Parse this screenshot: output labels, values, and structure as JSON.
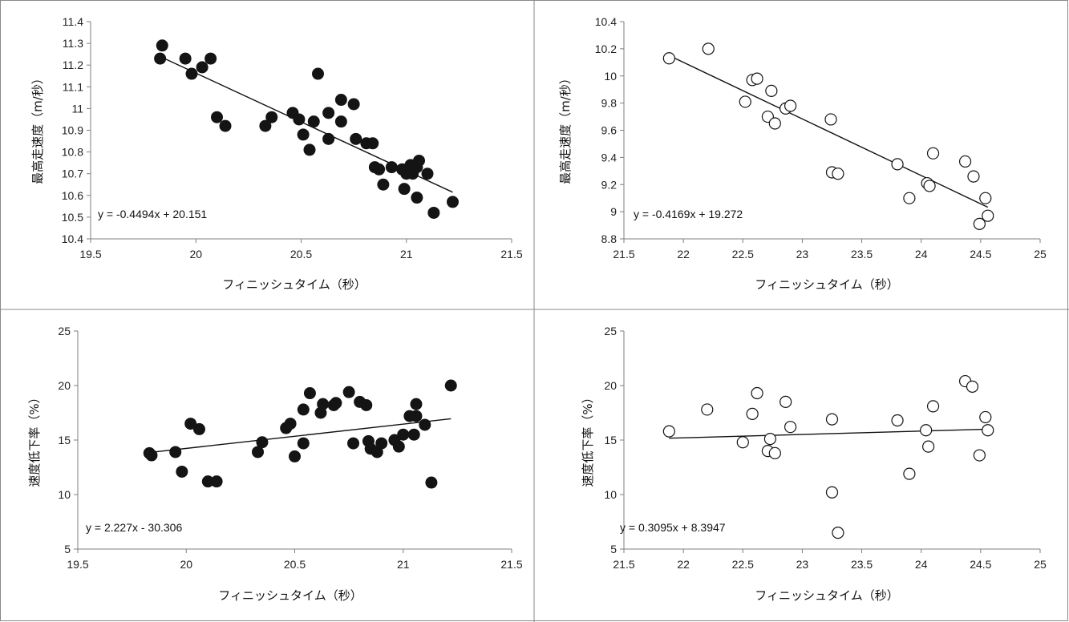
{
  "chart_data": [
    {
      "type": "scatter",
      "xlabel": "フィニッシュタイム（秒）",
      "ylabel": "最高走速度（m/秒）",
      "xlim": [
        19.5,
        21.5
      ],
      "ylim": [
        10.4,
        11.4
      ],
      "xticks": [
        "19.5",
        "20",
        "20.5",
        "21",
        "21.5"
      ],
      "yticks": [
        "10.4",
        "10.5",
        "10.6",
        "10.7",
        "10.8",
        "10.9",
        "11",
        "11.1",
        "11.2",
        "11.3",
        "11.4"
      ],
      "marker": "filled",
      "grid": false,
      "trendline": {
        "slope": -0.4494,
        "intercept": 20.151,
        "equation": "y = -0.4494x + 20.151"
      },
      "points": [
        [
          19.84,
          11.29
        ],
        [
          19.83,
          11.23
        ],
        [
          19.95,
          11.23
        ],
        [
          19.98,
          11.16
        ],
        [
          20.03,
          11.19
        ],
        [
          20.07,
          11.23
        ],
        [
          20.1,
          10.96
        ],
        [
          20.14,
          10.92
        ],
        [
          20.33,
          10.92
        ],
        [
          20.36,
          10.96
        ],
        [
          20.46,
          10.98
        ],
        [
          20.49,
          10.95
        ],
        [
          20.51,
          10.88
        ],
        [
          20.54,
          10.81
        ],
        [
          20.56,
          10.94
        ],
        [
          20.58,
          11.16
        ],
        [
          20.63,
          10.98
        ],
        [
          20.63,
          10.86
        ],
        [
          20.69,
          11.04
        ],
        [
          20.69,
          10.94
        ],
        [
          20.75,
          11.02
        ],
        [
          20.76,
          10.86
        ],
        [
          20.81,
          10.84
        ],
        [
          20.84,
          10.84
        ],
        [
          20.85,
          10.73
        ],
        [
          20.87,
          10.72
        ],
        [
          20.89,
          10.65
        ],
        [
          20.93,
          10.73
        ],
        [
          20.98,
          10.72
        ],
        [
          20.99,
          10.63
        ],
        [
          21.0,
          10.7
        ],
        [
          21.02,
          10.74
        ],
        [
          21.03,
          10.7
        ],
        [
          21.05,
          10.73
        ],
        [
          21.06,
          10.76
        ],
        [
          21.05,
          10.59
        ],
        [
          21.1,
          10.7
        ],
        [
          21.13,
          10.52
        ],
        [
          21.22,
          10.57
        ]
      ]
    },
    {
      "type": "scatter",
      "xlabel": "フィニッシュタイム（秒）",
      "ylabel": "最高走速度（m/秒）",
      "xlim": [
        21.5,
        25
      ],
      "ylim": [
        8.8,
        10.4
      ],
      "xticks": [
        "21.5",
        "22",
        "22.5",
        "23",
        "23.5",
        "24",
        "24.5",
        "25"
      ],
      "yticks": [
        "8.8",
        "9",
        "9.2",
        "9.4",
        "9.6",
        "9.8",
        "10",
        "10.2",
        "10.4"
      ],
      "marker": "hollow",
      "grid": false,
      "trendline": {
        "slope": -0.4169,
        "intercept": 19.272,
        "equation": "y = -0.4169x + 19.272"
      },
      "points": [
        [
          21.88,
          10.13
        ],
        [
          22.21,
          10.2
        ],
        [
          22.52,
          9.81
        ],
        [
          22.58,
          9.97
        ],
        [
          22.62,
          9.98
        ],
        [
          22.71,
          9.7
        ],
        [
          22.74,
          9.89
        ],
        [
          22.77,
          9.65
        ],
        [
          22.86,
          9.76
        ],
        [
          22.9,
          9.78
        ],
        [
          23.24,
          9.68
        ],
        [
          23.25,
          9.29
        ],
        [
          23.3,
          9.28
        ],
        [
          23.8,
          9.35
        ],
        [
          23.9,
          9.1
        ],
        [
          24.05,
          9.21
        ],
        [
          24.07,
          9.19
        ],
        [
          24.1,
          9.43
        ],
        [
          24.37,
          9.37
        ],
        [
          24.44,
          9.26
        ],
        [
          24.49,
          8.91
        ],
        [
          24.54,
          9.1
        ],
        [
          24.56,
          8.97
        ]
      ]
    },
    {
      "type": "scatter",
      "xlabel": "フィニッシュタイム（秒）",
      "ylabel": "速度低下率（%）",
      "xlim": [
        19.5,
        21.5
      ],
      "ylim": [
        5,
        25
      ],
      "xticks": [
        "19.5",
        "20",
        "20.5",
        "21",
        "21.5"
      ],
      "yticks": [
        "5",
        "10",
        "15",
        "20",
        "25"
      ],
      "marker": "filled",
      "grid": false,
      "trendline": {
        "slope": 2.227,
        "intercept": -30.306,
        "equation": "y = 2.227x - 30.306"
      },
      "points": [
        [
          19.83,
          13.8
        ],
        [
          19.84,
          13.6
        ],
        [
          19.95,
          13.9
        ],
        [
          19.98,
          12.1
        ],
        [
          20.02,
          16.5
        ],
        [
          20.06,
          16.0
        ],
        [
          20.1,
          11.2
        ],
        [
          20.14,
          11.2
        ],
        [
          20.33,
          13.9
        ],
        [
          20.35,
          14.8
        ],
        [
          20.46,
          16.1
        ],
        [
          20.48,
          16.5
        ],
        [
          20.5,
          13.5
        ],
        [
          20.54,
          14.7
        ],
        [
          20.54,
          17.8
        ],
        [
          20.57,
          19.3
        ],
        [
          20.62,
          17.5
        ],
        [
          20.63,
          18.3
        ],
        [
          20.68,
          18.2
        ],
        [
          20.69,
          18.4
        ],
        [
          20.75,
          19.4
        ],
        [
          20.77,
          14.7
        ],
        [
          20.8,
          18.5
        ],
        [
          20.83,
          18.2
        ],
        [
          20.84,
          14.9
        ],
        [
          20.85,
          14.2
        ],
        [
          20.88,
          13.9
        ],
        [
          20.9,
          14.7
        ],
        [
          20.96,
          15.0
        ],
        [
          20.98,
          14.4
        ],
        [
          21.0,
          15.5
        ],
        [
          21.03,
          17.2
        ],
        [
          21.05,
          15.5
        ],
        [
          21.06,
          17.2
        ],
        [
          21.06,
          18.3
        ],
        [
          21.1,
          16.4
        ],
        [
          21.13,
          11.1
        ],
        [
          21.22,
          20.0
        ]
      ]
    },
    {
      "type": "scatter",
      "xlabel": "フィニッシュタイム（秒）",
      "ylabel": "速度低下率（%）",
      "xlim": [
        21.5,
        25
      ],
      "ylim": [
        5,
        25
      ],
      "xticks": [
        "21.5",
        "22",
        "22.5",
        "23",
        "23.5",
        "24",
        "24.5",
        "25"
      ],
      "yticks": [
        "5",
        "10",
        "15",
        "20",
        "25"
      ],
      "marker": "hollow",
      "grid": false,
      "trendline": {
        "slope": 0.3095,
        "intercept": 8.3947,
        "equation": "y = 0.3095x + 8.3947"
      },
      "points": [
        [
          21.88,
          15.8
        ],
        [
          22.2,
          17.8
        ],
        [
          22.5,
          14.8
        ],
        [
          22.58,
          17.4
        ],
        [
          22.62,
          19.3
        ],
        [
          22.71,
          14.0
        ],
        [
          22.73,
          15.1
        ],
        [
          22.77,
          13.8
        ],
        [
          22.86,
          18.5
        ],
        [
          22.9,
          16.2
        ],
        [
          23.25,
          10.2
        ],
        [
          23.25,
          16.9
        ],
        [
          23.3,
          6.5
        ],
        [
          23.8,
          16.8
        ],
        [
          23.9,
          11.9
        ],
        [
          24.04,
          15.9
        ],
        [
          24.06,
          14.4
        ],
        [
          24.1,
          18.1
        ],
        [
          24.37,
          20.4
        ],
        [
          24.43,
          19.9
        ],
        [
          24.49,
          13.6
        ],
        [
          24.54,
          17.1
        ],
        [
          24.56,
          15.9
        ]
      ]
    }
  ]
}
